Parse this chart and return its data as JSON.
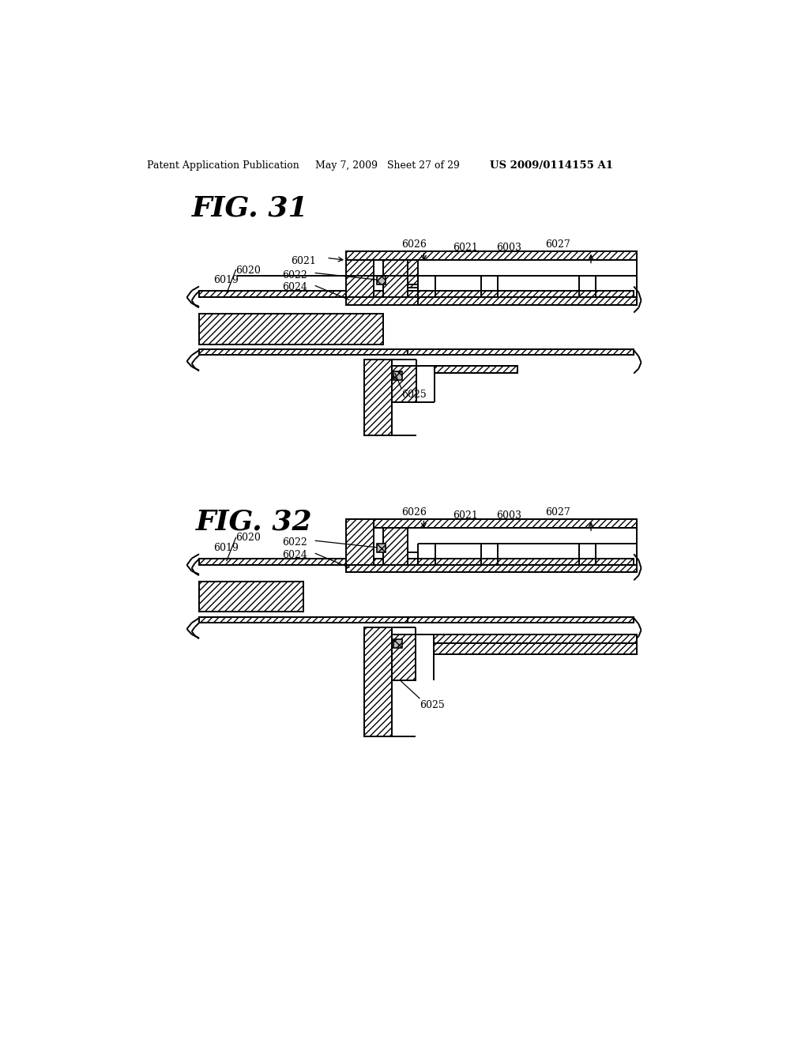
{
  "bg_color": "#ffffff",
  "header_left": "Patent Application Publication",
  "header_mid": "May 7, 2009   Sheet 27 of 29",
  "header_right": "US 2009/0114155 A1",
  "fig31_title": "FIG. 31",
  "fig32_title": "FIG. 32",
  "line_color": "#000000",
  "label_fontsize": 9,
  "title_fontsize": 26,
  "header_fontsize": 9
}
